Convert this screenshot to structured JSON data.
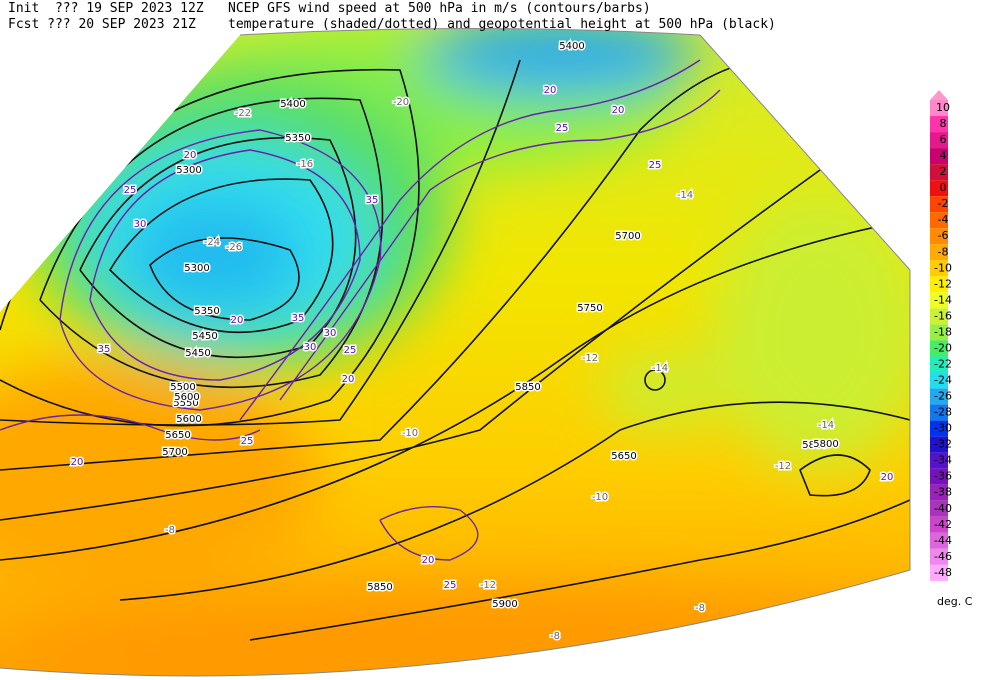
{
  "header": {
    "line1_left": "Init  ??? 19 SEP 2023 12Z",
    "line1_right": "NCEP GFS wind speed at 500 hPa in m/s (contours/barbs)",
    "line2_left": "Fcst ??? 20 SEP 2023 21Z",
    "line2_right": "temperature (shaded/dotted) and geopotential height at 500 hPa (black)"
  },
  "colorbar": {
    "labels": [
      10,
      8,
      6,
      4,
      2,
      0,
      -2,
      -4,
      -6,
      -8,
      -10,
      -12,
      -14,
      -16,
      -18,
      -20,
      -22,
      -24,
      -26,
      -28,
      -30,
      -32,
      -34,
      -36,
      -38,
      -40,
      -42,
      -44,
      -46,
      -48
    ],
    "colors": [
      "#ff88cc",
      "#ff33aa",
      "#e6198c",
      "#c80070",
      "#d0103a",
      "#ee1111",
      "#ff4400",
      "#ff6a00",
      "#ff8c00",
      "#ffaa00",
      "#ffcc00",
      "#ffee00",
      "#eeff22",
      "#ccf033",
      "#99ee44",
      "#44ee66",
      "#22eebb",
      "#22ddee",
      "#22aaf0",
      "#1177ee",
      "#0033ee",
      "#2211cc",
      "#5511cc",
      "#7711bb",
      "#9922bb",
      "#aa33bb",
      "#cc44cc",
      "#dd66dd",
      "#ee88ee",
      "#ffaaff"
    ],
    "arrow_color": "#ff99cc",
    "units": "deg. C"
  },
  "map": {
    "height_labels": [
      5300,
      5350,
      5400,
      5450,
      5500,
      5550,
      5600,
      5650,
      5700,
      5750,
      5800,
      5850,
      5900,
      5300,
      5400,
      5700,
      5800,
      5650,
      5850,
      5350,
      5450,
      5600
    ],
    "wind_labels": [
      20,
      25,
      30,
      35,
      20,
      25,
      30,
      35,
      20,
      25,
      20,
      25,
      30,
      20,
      25,
      20,
      20,
      35,
      25,
      20
    ],
    "temp_labels": [
      -26,
      -24,
      -20,
      -14,
      -12,
      -10,
      -8,
      -14,
      -12,
      -10,
      -8,
      -22,
      -14,
      -16,
      -12,
      -8
    ]
  }
}
